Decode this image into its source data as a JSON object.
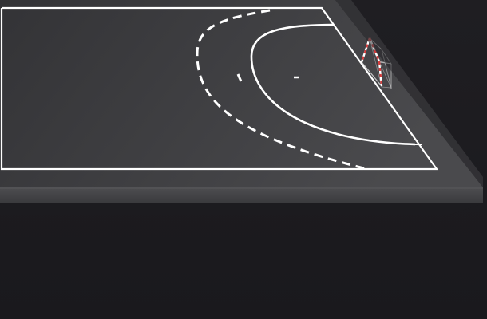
{
  "scene": {
    "description_visible_text": "",
    "colors": {
      "background": "#1c1b1f",
      "court_surface": "#3b3b3e",
      "court_surface_light": "#49494c",
      "court_edge": "#4b4b4e",
      "court_edge_dark": "#2f2f32",
      "lines": "#ffffff",
      "goal_post_red": "#d33a3a",
      "goal_post_white": "#ffffff"
    },
    "icons": {
      "goal": "handball-goal-icon"
    }
  }
}
